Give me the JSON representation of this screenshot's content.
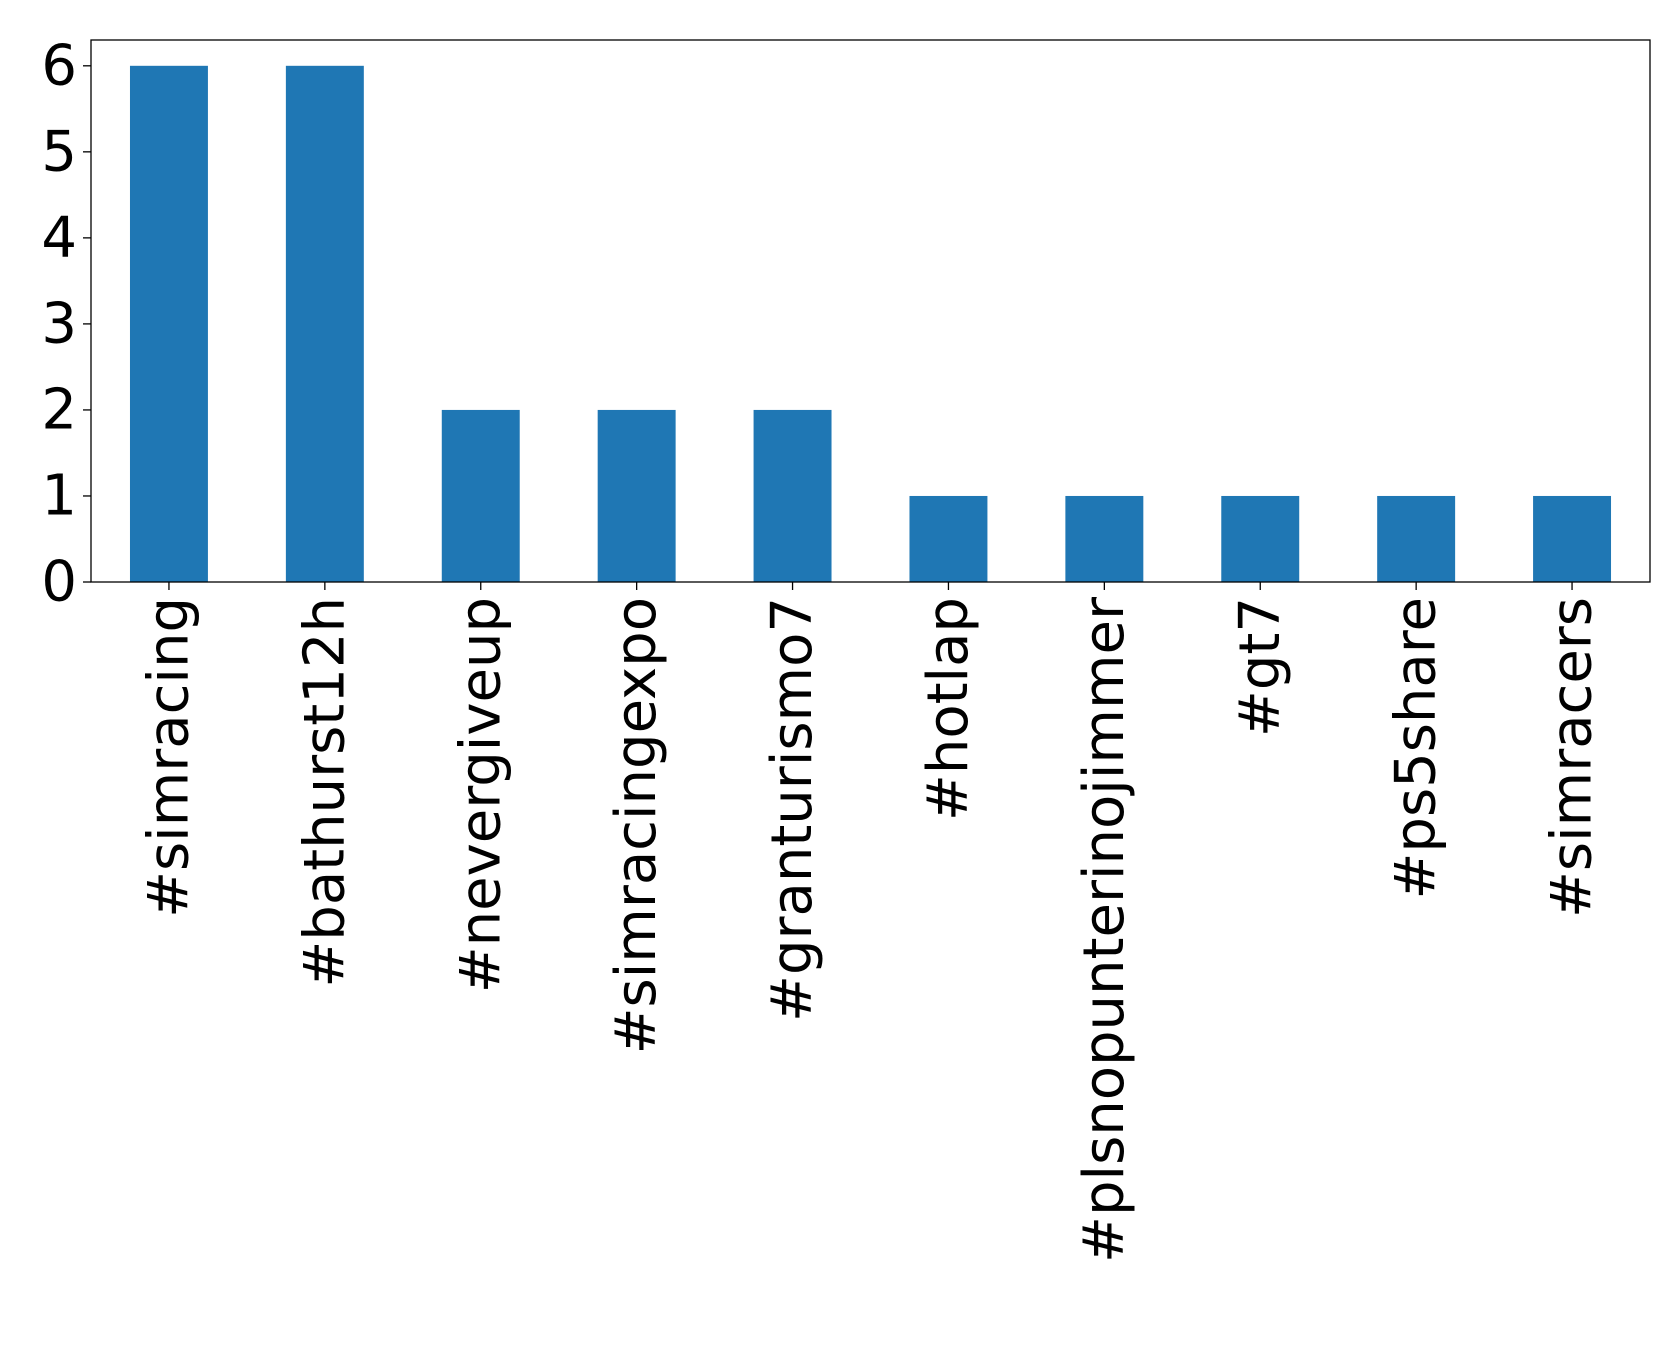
{
  "chart_data": {
    "type": "bar",
    "title": "",
    "xlabel": "",
    "ylabel": "",
    "categories": [
      "#simracing",
      "#bathurst12h",
      "#nevergiveup",
      "#simracingexpo",
      "#granturismo7",
      "#hotlap",
      "#plsnopunterinojimmer",
      "#gt7",
      "#ps5share",
      "#simracers"
    ],
    "values": [
      6,
      6,
      2,
      2,
      2,
      1,
      1,
      1,
      1,
      1
    ],
    "ylim": [
      0,
      6.3
    ],
    "yticks": [
      0,
      1,
      2,
      3,
      4,
      5,
      6
    ],
    "grid": false,
    "legend": "none",
    "bar_color": "#1f77b4"
  }
}
